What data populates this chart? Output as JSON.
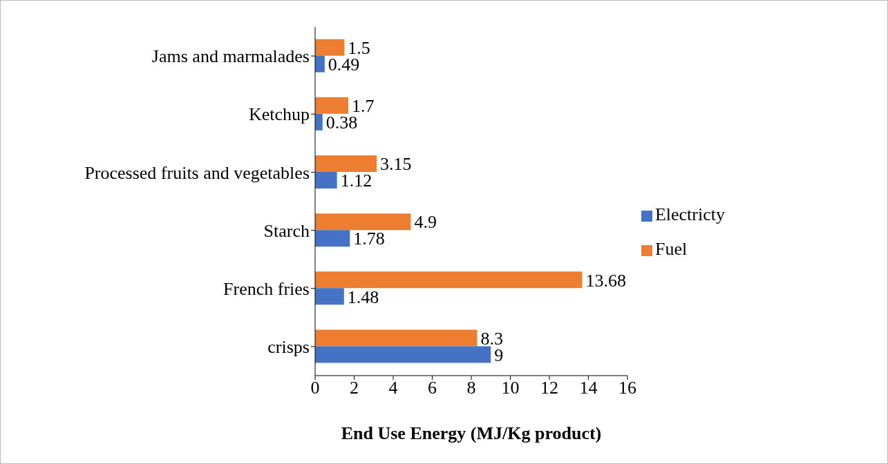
{
  "chart_data": {
    "type": "bar",
    "orientation": "horizontal",
    "xlabel": "End Use Energy (MJ/Kg product)",
    "categories": [
      "Jams and marmalades",
      "Ketchup",
      "Processed fruits and vegetables",
      "Starch",
      "French fries",
      "crisps"
    ],
    "series": [
      {
        "name": "Fuel",
        "color": "#ed7d31",
        "values": [
          1.5,
          1.7,
          3.15,
          4.9,
          13.68,
          8.3
        ]
      },
      {
        "name": "Electricty",
        "color": "#4472c4",
        "values": [
          0.49,
          0.38,
          1.12,
          1.78,
          1.48,
          9
        ]
      }
    ],
    "xlim": [
      0,
      16
    ],
    "xticks": [
      0,
      2,
      4,
      6,
      8,
      10,
      12,
      14,
      16
    ],
    "data_labels": true,
    "legend": "right",
    "grid": false
  }
}
